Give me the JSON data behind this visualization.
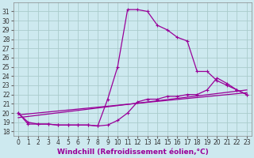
{
  "background_color": "#cde9ef",
  "grid_color": "#aacccc",
  "line_color": "#990099",
  "xlim": [
    -0.5,
    23.5
  ],
  "ylim": [
    17.5,
    32
  ],
  "xticks": [
    0,
    1,
    2,
    3,
    4,
    5,
    6,
    7,
    8,
    9,
    10,
    11,
    12,
    13,
    14,
    15,
    16,
    17,
    18,
    19,
    20,
    21,
    22,
    23
  ],
  "yticks": [
    18,
    19,
    20,
    21,
    22,
    23,
    24,
    25,
    26,
    27,
    28,
    29,
    30,
    31
  ],
  "xlabel": "Windchill (Refroidissement éolien,°C)",
  "curve1_x": [
    0,
    1,
    2,
    3,
    4,
    5,
    6,
    7,
    8,
    9,
    10,
    11,
    12,
    13,
    14,
    15,
    16,
    17,
    18,
    19,
    20,
    21,
    22,
    23
  ],
  "curve1_y": [
    20,
    19,
    18.8,
    18.8,
    18.7,
    18.7,
    18.7,
    18.7,
    18.6,
    21.5,
    25.0,
    31.2,
    31.2,
    31.0,
    29.5,
    29.0,
    28.2,
    27.8,
    24.5,
    24.5,
    23.5,
    23.0,
    22.5,
    22.0
  ],
  "curve2_x": [
    0,
    1,
    2,
    3,
    4,
    5,
    6,
    7,
    8,
    9,
    10,
    11,
    12,
    13,
    14,
    15,
    16,
    17,
    18,
    19,
    20,
    21,
    22,
    23
  ],
  "curve2_y": [
    20,
    18.8,
    18.8,
    18.8,
    18.7,
    18.7,
    18.7,
    18.7,
    18.6,
    18.7,
    19.2,
    20.0,
    21.2,
    21.5,
    21.5,
    21.8,
    21.8,
    22.0,
    22.0,
    22.5,
    23.8,
    23.2,
    22.5,
    22.0
  ],
  "curve3_x": [
    0,
    23
  ],
  "curve3_y": [
    19.8,
    22.2
  ],
  "curve4_x": [
    0,
    23
  ],
  "curve4_y": [
    19.5,
    22.5
  ],
  "marker": "+",
  "markersize": 3,
  "linewidth": 0.9,
  "xlabel_fontsize": 6.5,
  "tick_fontsize": 5.5
}
